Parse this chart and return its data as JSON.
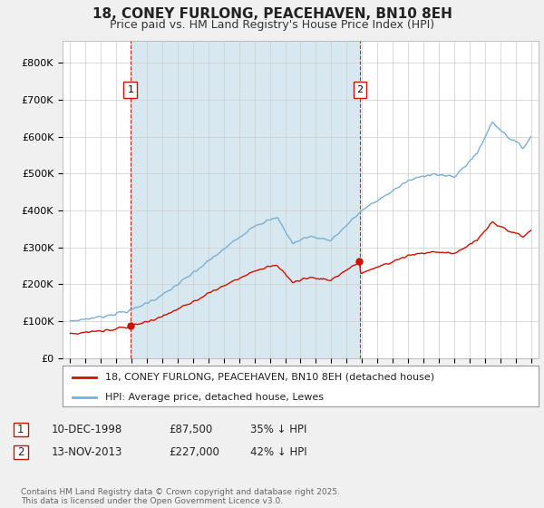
{
  "title": "18, CONEY FURLONG, PEACEHAVEN, BN10 8EH",
  "subtitle": "Price paid vs. HM Land Registry's House Price Index (HPI)",
  "ylim": [
    0,
    860000
  ],
  "yticks": [
    0,
    100000,
    200000,
    300000,
    400000,
    500000,
    600000,
    700000,
    800000
  ],
  "ytick_labels": [
    "£0",
    "£100K",
    "£200K",
    "£300K",
    "£400K",
    "£500K",
    "£600K",
    "£700K",
    "£800K"
  ],
  "hpi_color": "#7ab0d4",
  "price_color": "#cc1100",
  "purchase1_date": 1998.92,
  "purchase1_price": 87500,
  "purchase2_date": 2013.87,
  "purchase2_price": 227000,
  "legend_label1": "18, CONEY FURLONG, PEACEHAVEN, BN10 8EH (detached house)",
  "legend_label2": "HPI: Average price, detached house, Lewes",
  "footer": "Contains HM Land Registry data © Crown copyright and database right 2025.\nThis data is licensed under the Open Government Licence v3.0.",
  "xlim": [
    1994.5,
    2025.5
  ],
  "xticks": [
    1995,
    1996,
    1997,
    1998,
    1999,
    2000,
    2001,
    2002,
    2003,
    2004,
    2005,
    2006,
    2007,
    2008,
    2009,
    2010,
    2011,
    2012,
    2013,
    2014,
    2015,
    2016,
    2017,
    2018,
    2019,
    2020,
    2021,
    2022,
    2023,
    2024,
    2025
  ],
  "background_color": "#f0f0f0",
  "plot_bg": "#ffffff",
  "shade_color": "#d8e8f0"
}
